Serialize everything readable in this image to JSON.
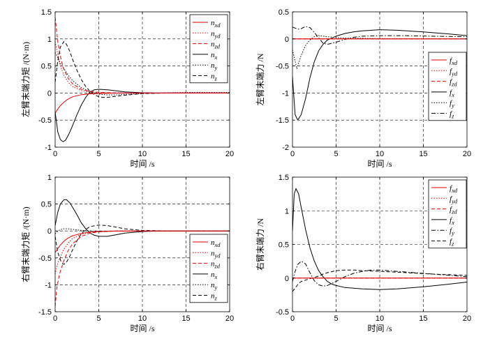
{
  "chart_data": [
    {
      "id": "p1",
      "type": "line",
      "xlabel": "时间 /s",
      "ylabel": "左臂末端力矩 /(N·m)",
      "xlim": [
        0,
        20
      ],
      "ylim": [
        -1,
        1.5
      ],
      "xticks": [
        "0",
        "5",
        "10",
        "15",
        "20"
      ],
      "yticks": [
        "-1",
        "-0.5",
        "0",
        "0.5",
        "1",
        "1.5"
      ],
      "grid": true,
      "legend_position": "top-right",
      "series": [
        {
          "name": "n_xd",
          "label_main": "n",
          "label_sub": "xd",
          "color": "#e00000",
          "dash": "solid",
          "x": [
            0,
            0.5,
            1,
            1.5,
            2,
            3,
            4,
            5,
            7,
            10,
            20
          ],
          "y": [
            -0.37,
            -0.25,
            -0.17,
            -0.11,
            -0.07,
            -0.03,
            -0.015,
            -0.008,
            -0.003,
            0,
            0
          ]
        },
        {
          "name": "n_yd",
          "label_main": "n",
          "label_sub": "yd",
          "color": "#e00000",
          "dash": "dot",
          "x": [
            0,
            0.5,
            1,
            1.5,
            2,
            3,
            4,
            5,
            7,
            10,
            20
          ],
          "y": [
            0.95,
            0.55,
            0.33,
            0.2,
            0.12,
            0.045,
            0.018,
            0.008,
            0.002,
            0,
            0
          ]
        },
        {
          "name": "n_zd",
          "label_main": "n",
          "label_sub": "zd",
          "color": "#e00000",
          "dash": "dash",
          "x": [
            0,
            0.3,
            0.7,
            1,
            1.5,
            2,
            3,
            4,
            5,
            7,
            10,
            20
          ],
          "y": [
            1.4,
            0.95,
            0.6,
            0.44,
            0.27,
            0.17,
            0.07,
            0.03,
            0.012,
            0.003,
            0,
            0
          ]
        },
        {
          "name": "n_x",
          "label_main": "n",
          "label_sub": "x",
          "color": "#000000",
          "dash": "solid",
          "x": [
            0,
            0.3,
            0.6,
            0.9,
            1.2,
            1.6,
            2,
            2.5,
            3,
            3.5,
            4,
            4.5,
            5,
            6,
            7,
            8,
            10,
            12,
            15,
            20
          ],
          "y": [
            -0.35,
            -0.72,
            -0.86,
            -0.9,
            -0.87,
            -0.75,
            -0.6,
            -0.4,
            -0.22,
            -0.08,
            0.02,
            0.06,
            0.07,
            0.06,
            0.04,
            0.02,
            0.005,
            0,
            0,
            0
          ]
        },
        {
          "name": "n_y",
          "label_main": "n",
          "label_sub": "y",
          "color": "#000000",
          "dash": "dot",
          "x": [
            0,
            0.3,
            0.6,
            1,
            1.5,
            2,
            3,
            4,
            5,
            6,
            7,
            8,
            10,
            13,
            16,
            20
          ],
          "y": [
            0.75,
            0.65,
            0.55,
            0.45,
            0.33,
            0.23,
            0.1,
            0.02,
            -0.02,
            -0.035,
            -0.035,
            -0.025,
            -0.01,
            0.005,
            0.01,
            0.01
          ]
        },
        {
          "name": "n_z",
          "label_main": "n",
          "label_sub": "z",
          "color": "#000000",
          "dash": "dash",
          "x": [
            0,
            0.3,
            0.6,
            1,
            1.3,
            1.7,
            2,
            2.5,
            3,
            3.5,
            4,
            4.5,
            5,
            5.5,
            6,
            7,
            8,
            10,
            13,
            20
          ],
          "y": [
            0.2,
            0.6,
            0.85,
            0.95,
            0.9,
            0.76,
            0.62,
            0.42,
            0.25,
            0.12,
            0.03,
            -0.03,
            -0.07,
            -0.08,
            -0.08,
            -0.06,
            -0.04,
            -0.01,
            0,
            0
          ]
        }
      ]
    },
    {
      "id": "p2",
      "type": "line",
      "xlabel": "时间 /s",
      "ylabel": "左臂末端力 /N",
      "xlim": [
        0,
        20
      ],
      "ylim": [
        -2,
        0.5
      ],
      "xticks": [
        "0",
        "5",
        "10",
        "15",
        "20"
      ],
      "yticks": [
        "-2",
        "-1.5",
        "-1",
        "-0.5",
        "0",
        "0.5"
      ],
      "grid": true,
      "legend_position": "bottom-right",
      "series": [
        {
          "name": "f_xd",
          "label_main": "f",
          "label_sub": "xd",
          "color": "#e00000",
          "dash": "solid",
          "x": [
            0,
            20
          ],
          "y": [
            0,
            0
          ]
        },
        {
          "name": "f_yd",
          "label_main": "f",
          "label_sub": "yd",
          "color": "#e00000",
          "dash": "dot",
          "x": [
            0,
            20
          ],
          "y": [
            0,
            0
          ]
        },
        {
          "name": "f_zd",
          "label_main": "f",
          "label_sub": "zd",
          "color": "#e00000",
          "dash": "dash",
          "x": [
            0,
            20
          ],
          "y": [
            0,
            0
          ]
        },
        {
          "name": "f_x",
          "label_main": "f",
          "label_sub": "x",
          "color": "#000000",
          "dash": "solid",
          "x": [
            0,
            0.3,
            0.6,
            1,
            1.5,
            2,
            2.5,
            3,
            3.5,
            4,
            5,
            6,
            7,
            8,
            10,
            12,
            15,
            18,
            20
          ],
          "y": [
            -0.7,
            -1.4,
            -1.5,
            -1.4,
            -1.1,
            -0.72,
            -0.42,
            -0.22,
            -0.1,
            -0.02,
            0.05,
            0.1,
            0.13,
            0.15,
            0.17,
            0.16,
            0.13,
            0.09,
            0.06
          ]
        },
        {
          "name": "f_y",
          "label_main": "f",
          "label_sub": "y",
          "color": "#000000",
          "dash": "dot",
          "x": [
            0,
            0.5,
            1,
            1.5,
            2,
            2.5,
            3,
            3.5,
            4,
            5,
            6,
            8,
            10,
            14,
            20
          ],
          "y": [
            -0.2,
            -0.55,
            -0.3,
            -0.12,
            -0.02,
            0.04,
            0.06,
            0.05,
            0.04,
            0.025,
            0.015,
            0.01,
            0.005,
            0.002,
            0
          ]
        },
        {
          "name": "f_z",
          "label_main": "f",
          "label_sub": "z",
          "color": "#000000",
          "dash": "dashdot",
          "x": [
            0,
            0.3,
            0.7,
            1,
            1.5,
            2,
            2.5,
            3,
            3.5,
            4,
            5,
            6,
            7,
            8,
            10,
            13,
            16,
            20
          ],
          "y": [
            0.22,
            0.2,
            0.18,
            0.19,
            0.23,
            0.21,
            0.12,
            0.02,
            -0.08,
            -0.1,
            -0.06,
            -0.01,
            0.03,
            0.05,
            0.06,
            0.06,
            0.05,
            0.04
          ]
        }
      ]
    },
    {
      "id": "p3",
      "type": "line",
      "xlabel": "时间 /s",
      "ylabel": "右臂末端力矩 /(N·m)",
      "xlim": [
        0,
        20
      ],
      "ylim": [
        -1.5,
        1
      ],
      "xticks": [
        "0",
        "5",
        "10",
        "15",
        "20"
      ],
      "yticks": [
        "-1.5",
        "-1",
        "-0.5",
        "0",
        "0.5",
        "1"
      ],
      "grid": true,
      "legend_position": "bottom-right",
      "series": [
        {
          "name": "n_xd",
          "label_main": "n",
          "label_sub": "xd",
          "color": "#e00000",
          "dash": "solid",
          "x": [
            0,
            0.5,
            1,
            1.5,
            2,
            3,
            4,
            5,
            7,
            10,
            20
          ],
          "y": [
            -0.4,
            -0.28,
            -0.19,
            -0.13,
            -0.09,
            -0.045,
            -0.02,
            -0.01,
            -0.003,
            0,
            0
          ]
        },
        {
          "name": "n_yd",
          "label_main": "n",
          "label_sub": "yd",
          "color": "#e00000",
          "dash": "dot",
          "x": [
            0,
            0.3,
            0.7,
            1,
            1.5,
            2,
            3,
            4,
            5,
            7,
            10,
            20
          ],
          "y": [
            -0.8,
            -0.6,
            -0.44,
            -0.34,
            -0.22,
            -0.14,
            -0.06,
            -0.025,
            -0.01,
            -0.002,
            0,
            0
          ]
        },
        {
          "name": "n_zd",
          "label_main": "n",
          "label_sub": "zd",
          "color": "#e00000",
          "dash": "dash",
          "x": [
            0,
            0.2,
            0.5,
            1,
            1.5,
            2,
            3,
            4,
            5,
            7,
            10,
            20
          ],
          "y": [
            -1.4,
            -1.05,
            -0.8,
            -0.55,
            -0.36,
            -0.24,
            -0.1,
            -0.04,
            -0.015,
            -0.003,
            0,
            0
          ]
        },
        {
          "name": "n_x",
          "label_main": "n",
          "label_sub": "x",
          "color": "#000000",
          "dash": "solid",
          "x": [
            0,
            0.3,
            0.6,
            1,
            1.3,
            1.7,
            2,
            2.5,
            3,
            3.5,
            4,
            4.5,
            5,
            6,
            7,
            8,
            10,
            12,
            15,
            20
          ],
          "y": [
            0.1,
            0.35,
            0.5,
            0.58,
            0.58,
            0.52,
            0.44,
            0.3,
            0.15,
            0.04,
            -0.04,
            -0.08,
            -0.1,
            -0.1,
            -0.07,
            -0.04,
            -0.01,
            0,
            0,
            0
          ]
        },
        {
          "name": "n_y",
          "label_main": "n",
          "label_sub": "y",
          "color": "#000000",
          "dash": "dot",
          "x": [
            0,
            0.3,
            0.7,
            1,
            1.5,
            2,
            2.5,
            3,
            4,
            5,
            7,
            10,
            20
          ],
          "y": [
            -0.05,
            0.0,
            0.03,
            0.04,
            0.04,
            0.03,
            0.02,
            0.01,
            0.0,
            -0.005,
            0,
            0,
            0
          ]
        },
        {
          "name": "n_z",
          "label_main": "n",
          "label_sub": "z",
          "color": "#000000",
          "dash": "dash",
          "x": [
            0,
            0.3,
            0.7,
            1,
            1.3,
            1.7,
            2,
            2.5,
            3,
            3.5,
            4,
            5,
            6,
            7,
            8,
            10,
            13,
            20
          ],
          "y": [
            -0.1,
            -0.4,
            -0.58,
            -0.62,
            -0.58,
            -0.46,
            -0.35,
            -0.18,
            -0.05,
            0.03,
            0.08,
            0.11,
            0.1,
            0.07,
            0.04,
            0.01,
            0,
            0
          ]
        }
      ]
    },
    {
      "id": "p4",
      "type": "line",
      "xlabel": "时间 /s",
      "ylabel": "右臂末端力 /N",
      "xlim": [
        0,
        20
      ],
      "ylim": [
        -0.5,
        1.5
      ],
      "xticks": [
        "0",
        "5",
        "10",
        "15",
        "20"
      ],
      "yticks": [
        "-0.5",
        "0",
        "0.5",
        "1",
        "1.5"
      ],
      "grid": true,
      "legend_position": "top-right",
      "series": [
        {
          "name": "f_xd",
          "label_main": "f",
          "label_sub": "xd",
          "color": "#e00000",
          "dash": "solid",
          "x": [
            0,
            20
          ],
          "y": [
            0,
            0
          ]
        },
        {
          "name": "f_yd",
          "label_main": "f",
          "label_sub": "yd",
          "color": "#e00000",
          "dash": "dot",
          "x": [
            0,
            20
          ],
          "y": [
            0,
            0
          ]
        },
        {
          "name": "f_zd",
          "label_main": "f",
          "label_sub": "zd",
          "color": "#e00000",
          "dash": "dash",
          "x": [
            0,
            20
          ],
          "y": [
            0,
            0
          ]
        },
        {
          "name": "f_x",
          "label_main": "f",
          "label_sub": "x",
          "color": "#000000",
          "dash": "solid",
          "x": [
            0,
            0.2,
            0.4,
            0.7,
            1,
            1.5,
            2,
            2.5,
            3,
            3.5,
            4,
            4.5,
            5,
            6,
            7,
            8,
            10,
            12,
            15,
            18,
            20
          ],
          "y": [
            0.7,
            1.25,
            1.33,
            1.25,
            1.05,
            0.72,
            0.45,
            0.25,
            0.11,
            0.02,
            -0.05,
            -0.09,
            -0.11,
            -0.14,
            -0.15,
            -0.16,
            -0.17,
            -0.16,
            -0.13,
            -0.09,
            -0.06
          ]
        },
        {
          "name": "f_y",
          "label_main": "f",
          "label_sub": "y",
          "color": "#000000",
          "dash": "dashdot",
          "x": [
            0,
            0.3,
            0.6,
            1,
            1.5,
            2,
            2.5,
            3,
            3.5,
            4,
            5,
            6,
            7,
            8,
            9,
            10,
            12,
            15,
            20
          ],
          "y": [
            -0.05,
            0.1,
            0.2,
            0.25,
            0.21,
            0.08,
            -0.04,
            -0.1,
            -0.12,
            -0.11,
            -0.05,
            0.02,
            0.07,
            0.1,
            0.12,
            0.12,
            0.1,
            0.07,
            0.02
          ]
        },
        {
          "name": "f_z",
          "label_main": "f",
          "label_sub": "z",
          "color": "#000000",
          "dash": "dash",
          "x": [
            0,
            0.3,
            0.7,
            1,
            1.5,
            2,
            2.5,
            3,
            3.5,
            4,
            5,
            6,
            7,
            8,
            10,
            13,
            16,
            20
          ],
          "y": [
            -0.2,
            -0.15,
            -0.08,
            -0.05,
            -0.03,
            -0.01,
            0.01,
            0.03,
            0.06,
            0.08,
            0.11,
            0.12,
            0.12,
            0.11,
            0.1,
            0.08,
            0.06,
            0.04
          ]
        }
      ]
    }
  ]
}
